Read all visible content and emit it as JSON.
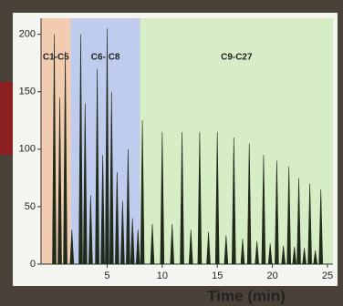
{
  "chart_data": {
    "type": "chromatogram",
    "xlabel": "Time (min)",
    "xlim": [
      -1,
      25.5
    ],
    "xticks": [
      5,
      10,
      15,
      20,
      25
    ],
    "ylim": [
      0,
      210
    ],
    "yticks": [
      0,
      50,
      100,
      150,
      200
    ],
    "color": "#1f2a1a",
    "regions": [
      {
        "label": "C1-C5",
        "range": [
          -1,
          1.7
        ],
        "color": "#f2c8a8"
      },
      {
        "label": "C6- C8",
        "range": [
          1.7,
          8
        ],
        "color": "#b9c8ec"
      },
      {
        "label": "C9-C27",
        "range": [
          8,
          25.5
        ],
        "color": "#d4ecc0"
      }
    ],
    "x": [
      0.2,
      0.7,
      1.2,
      1.8,
      2.6,
      3.0,
      3.5,
      4.1,
      4.6,
      5.0,
      5.4,
      5.9,
      6.4,
      6.9,
      7.3,
      7.8,
      8.2,
      9.1,
      10.0,
      10.9,
      11.8,
      12.6,
      13.4,
      14.2,
      15.0,
      15.8,
      16.5,
      17.3,
      17.9,
      18.6,
      19.2,
      19.8,
      20.4,
      21.0,
      21.5,
      22.0,
      22.4,
      22.9,
      23.4,
      23.9,
      24.4
    ],
    "values": [
      200,
      145,
      185,
      30,
      200,
      140,
      60,
      170,
      95,
      205,
      150,
      80,
      55,
      100,
      40,
      30,
      125,
      35,
      115,
      35,
      115,
      30,
      115,
      28,
      115,
      25,
      110,
      22,
      105,
      20,
      95,
      18,
      90,
      16,
      85,
      15,
      75,
      14,
      70,
      12,
      65
    ]
  }
}
